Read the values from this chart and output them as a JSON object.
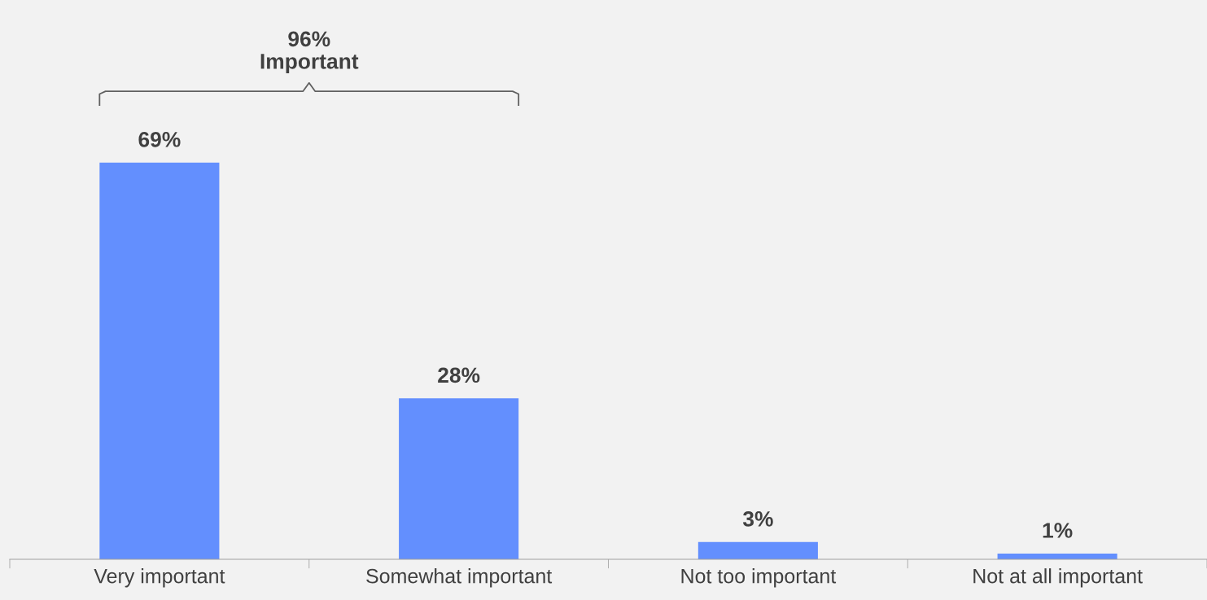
{
  "chart_data": {
    "type": "bar",
    "categories": [
      "Very important",
      "Somewhat important",
      "Not too important",
      "Not at all important"
    ],
    "values": [
      69,
      28,
      3,
      1
    ],
    "color": "#638ffe",
    "value_labels": [
      "69%",
      "28%",
      "3%",
      "1%"
    ],
    "annotations": [
      "96%\nImportant"
    ],
    "grid": false,
    "legend": false
  }
}
